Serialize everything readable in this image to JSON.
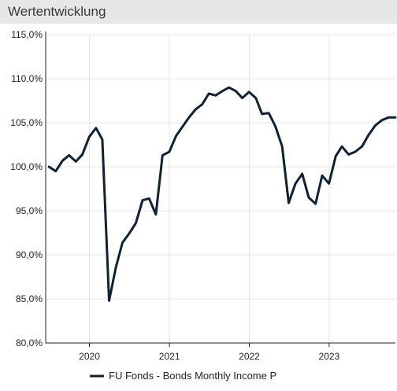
{
  "header": {
    "title": "Wertentwicklung"
  },
  "colors": {
    "line": "#0f2233",
    "grid": "#e6e6e6",
    "axis": "#222222",
    "header_bg": "#e6e7e8"
  },
  "chart_data": {
    "type": "line",
    "title": "Wertentwicklung",
    "xlabel": "",
    "ylabel": "",
    "ylim": [
      80,
      115
    ],
    "xlim": [
      "2019-06-15",
      "2023-10-31"
    ],
    "grid": true,
    "legend_position": "bottom",
    "y_ticks": [
      80,
      85,
      90,
      95,
      100,
      105,
      110,
      115
    ],
    "y_tick_labels": [
      "80,0%",
      "85,0%",
      "90,0%",
      "95,0%",
      "100,0%",
      "105,0%",
      "110,0%",
      "115,0%"
    ],
    "x_ticks": [
      "2020-01-01",
      "2021-01-01",
      "2022-01-01",
      "2023-01-01"
    ],
    "x_tick_labels": [
      "2020",
      "2021",
      "2022",
      "2023"
    ],
    "series": [
      {
        "name": "FU Fonds - Bonds Monthly Income P",
        "x": [
          "2019-06-30",
          "2019-07-31",
          "2019-08-31",
          "2019-09-30",
          "2019-10-31",
          "2019-11-30",
          "2019-12-31",
          "2020-01-31",
          "2020-02-29",
          "2020-03-31",
          "2020-04-30",
          "2020-05-31",
          "2020-06-30",
          "2020-07-31",
          "2020-08-31",
          "2020-09-30",
          "2020-10-31",
          "2020-11-30",
          "2020-12-31",
          "2021-01-31",
          "2021-02-28",
          "2021-03-31",
          "2021-04-30",
          "2021-05-31",
          "2021-06-30",
          "2021-07-31",
          "2021-08-31",
          "2021-09-30",
          "2021-10-31",
          "2021-11-30",
          "2021-12-31",
          "2022-01-31",
          "2022-02-28",
          "2022-03-31",
          "2022-04-30",
          "2022-05-31",
          "2022-06-30",
          "2022-07-31",
          "2022-08-31",
          "2022-09-30",
          "2022-10-31",
          "2022-11-30",
          "2022-12-31",
          "2023-01-31",
          "2023-02-28",
          "2023-03-31",
          "2023-04-30",
          "2023-05-31",
          "2023-06-30",
          "2023-07-31",
          "2023-08-31",
          "2023-09-30",
          "2023-10-31"
        ],
        "values": [
          100.0,
          99.5,
          100.7,
          101.3,
          100.6,
          101.4,
          103.4,
          104.4,
          103.1,
          84.8,
          88.5,
          91.4,
          92.4,
          93.6,
          96.2,
          96.4,
          94.6,
          101.3,
          101.7,
          103.5,
          104.5,
          105.6,
          106.5,
          107.1,
          108.3,
          108.1,
          108.6,
          109.0,
          108.6,
          107.8,
          108.5,
          107.8,
          106.0,
          106.1,
          104.6,
          102.3,
          95.9,
          98.1,
          99.2,
          96.5,
          95.8,
          99.0,
          98.1,
          101.2,
          102.3,
          101.4,
          101.7,
          102.3,
          103.6,
          104.7,
          105.3,
          105.6,
          105.6
        ]
      }
    ]
  }
}
